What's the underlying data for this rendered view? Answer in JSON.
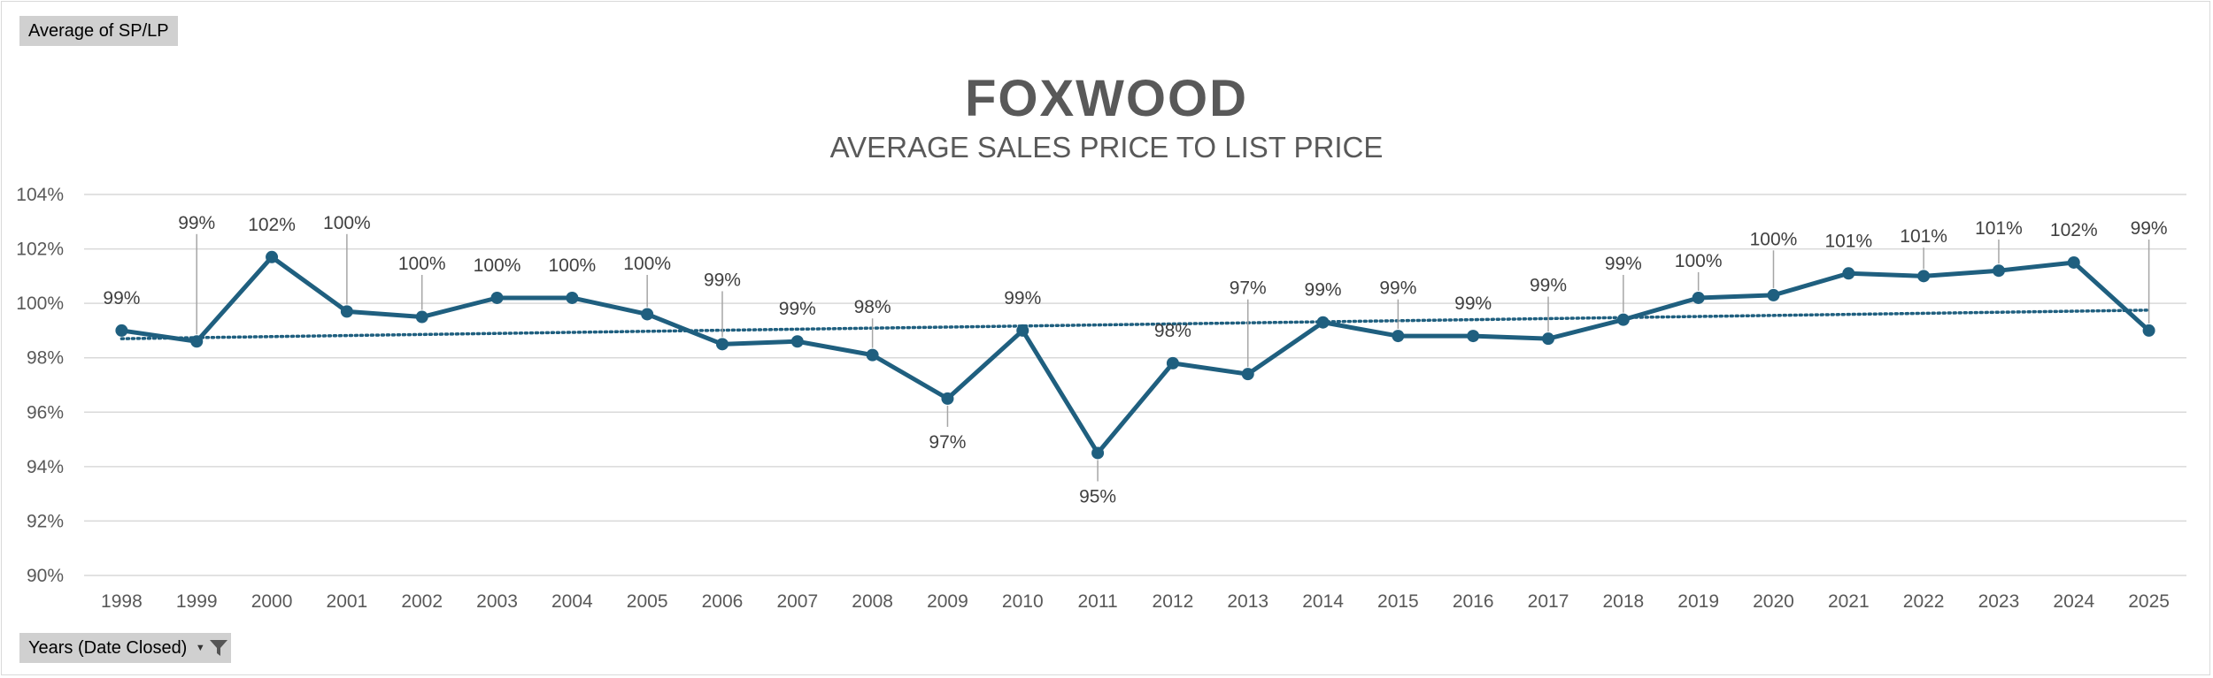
{
  "pivot_fields": {
    "value_field": "Average of SP/LP",
    "axis_field": "Years (Date Closed)",
    "filter_icon": "filter-funnel-icon"
  },
  "colors": {
    "series": "#1f5f7f",
    "trendline": "#1f5f7f",
    "gridline": "#d9d9d9",
    "text": "#595959"
  },
  "chart_data": {
    "type": "line",
    "title": "FOXWOOD",
    "subtitle": "AVERAGE SALES PRICE TO LIST PRICE",
    "xlabel": "",
    "ylabel": "",
    "ylim": [
      90,
      104
    ],
    "yticks": [
      90,
      92,
      94,
      96,
      98,
      100,
      102,
      104
    ],
    "ytick_labels": [
      "90%",
      "92%",
      "94%",
      "96%",
      "98%",
      "100%",
      "102%",
      "104%"
    ],
    "categories": [
      "1998",
      "1999",
      "2000",
      "2001",
      "2002",
      "2003",
      "2004",
      "2005",
      "2006",
      "2007",
      "2008",
      "2009",
      "2010",
      "2011",
      "2012",
      "2013",
      "2014",
      "2015",
      "2016",
      "2017",
      "2018",
      "2019",
      "2020",
      "2021",
      "2022",
      "2023",
      "2024",
      "2025"
    ],
    "series": [
      {
        "name": "Average of SP/LP",
        "values": [
          99.0,
          98.6,
          101.7,
          99.7,
          99.5,
          100.2,
          100.2,
          99.6,
          98.5,
          98.6,
          98.1,
          96.5,
          99.0,
          94.5,
          97.8,
          97.4,
          99.3,
          98.8,
          98.8,
          98.7,
          99.4,
          100.2,
          100.3,
          101.1,
          101.0,
          101.2,
          101.5,
          99.0
        ],
        "data_labels": [
          "99%",
          "99%",
          "102%",
          "100%",
          "100%",
          "100%",
          "100%",
          "100%",
          "99%",
          "99%",
          "98%",
          "97%",
          "99%",
          "95%",
          "98%",
          "97%",
          "99%",
          "99%",
          "99%",
          "99%",
          "99%",
          "100%",
          "100%",
          "101%",
          "101%",
          "101%",
          "102%",
          "99%"
        ]
      }
    ],
    "trendline": {
      "type": "linear",
      "style": "dotted",
      "start": 98.7,
      "end": 99.75
    },
    "grid": true,
    "legend": "none"
  }
}
